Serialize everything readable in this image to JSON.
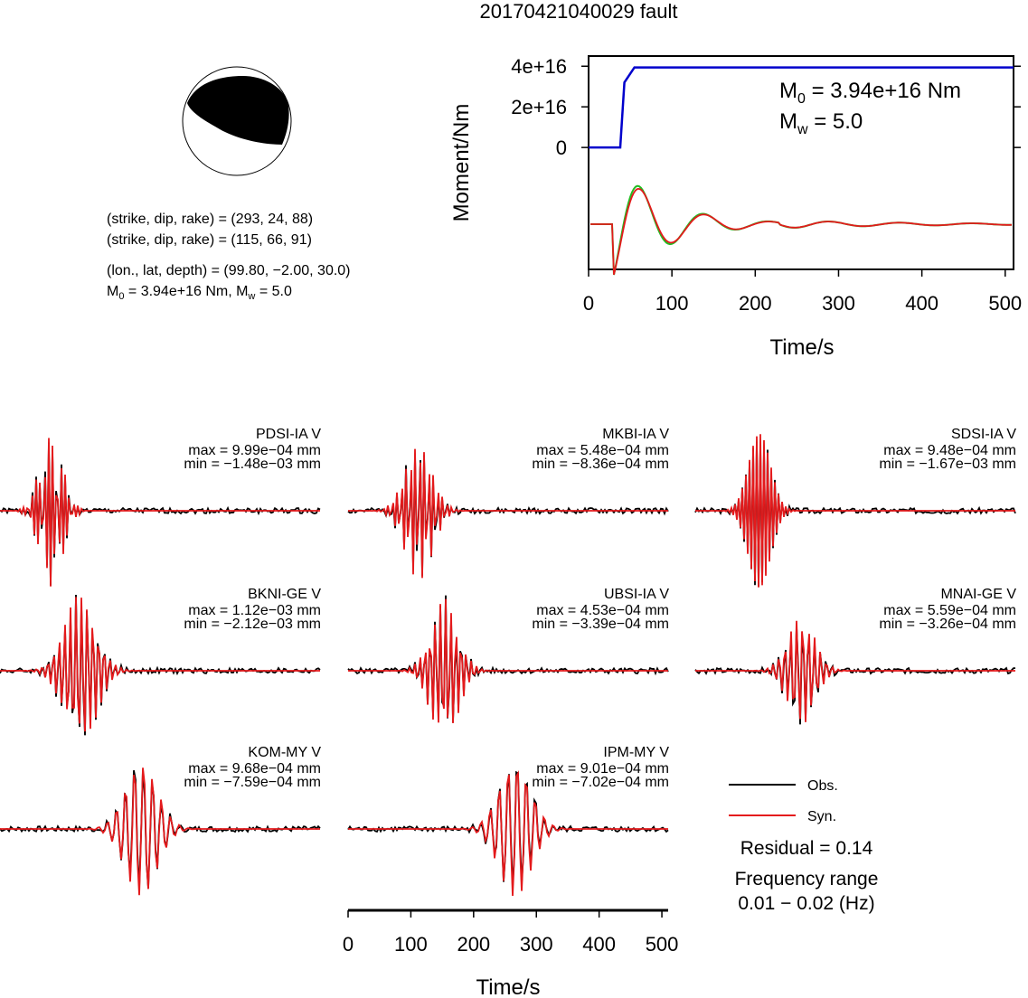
{
  "title": "20170421040029 fault",
  "info": {
    "np1": "(strike, dip, rake) = (293, 24, 88)",
    "np2": "(strike, dip, rake) = (115, 66, 91)",
    "loc": "(lon., lat, depth) = (99.80, −2.00, 30.0)",
    "m0_prefix": "M",
    "m0_sub": "0",
    "m0_rest": " = 3.94e+16 Nm, M",
    "mw_sub": "w",
    "mw_rest": " = 5.0"
  },
  "colors": {
    "obs": "#000000",
    "syn": "#e41a1c",
    "moment": "#0000cc",
    "green": "#22bb22"
  },
  "chart_data": [
    {
      "type": "line",
      "ylabel": "Moment/Nm",
      "xlabel": "Time/s",
      "xlim": [
        0,
        510
      ],
      "ylim": [
        -6e+16,
        4.5e+16
      ],
      "x_ticks": [
        "0",
        "100",
        "200",
        "300",
        "400",
        "500"
      ],
      "y_ticks": [
        "0",
        "2e+16",
        "4e+16"
      ],
      "annotation": {
        "m0_prefix": "M",
        "m0_sub": "0",
        "m0_rest": " = 3.94e+16 Nm",
        "mw_prefix": "M",
        "mw_sub": "w",
        "mw_rest": " = 5.0"
      },
      "series": [
        {
          "name": "",
          "x": [
            0,
            38,
            43,
            55,
            510
          ],
          "values": [
            0,
            0,
            3.2e+16,
            3.94e+16,
            3.94e+16
          ]
        }
      ]
    },
    {
      "type": "line",
      "xlabel": "Time/s",
      "xlim": [
        0,
        510
      ],
      "x_ticks": [
        "0",
        "100",
        "200",
        "300",
        "400",
        "500"
      ],
      "legend": {
        "position": "bottom-right",
        "obs": "Obs.",
        "syn": "Syn."
      },
      "residual": "Residual = 0.14",
      "freq_label": "Frequency range",
      "freq_value": "0.01 − 0.02 (Hz)",
      "stations": [
        {
          "name": "PDSI-IA V",
          "max": "max = 9.99e−04 mm",
          "min": "min = −1.48e−03 mm"
        },
        {
          "name": "MKBI-IA V",
          "max": "max = 5.48e−04 mm",
          "min": "min = −8.36e−04 mm"
        },
        {
          "name": "SDSI-IA V",
          "max": "max = 9.48e−04 mm",
          "min": "min = −1.67e−03 mm"
        },
        {
          "name": "BKNI-GE V",
          "max": "max = 1.12e−03 mm",
          "min": "min = −2.12e−03 mm"
        },
        {
          "name": "UBSI-IA V",
          "max": "max = 4.53e−04 mm",
          "min": "min = −3.39e−04 mm"
        },
        {
          "name": "MNAI-GE V",
          "max": "max = 5.59e−04 mm",
          "min": "min = −3.26e−04 mm"
        },
        {
          "name": "KOM-MY V",
          "max": "max = 9.68e−04 mm",
          "min": "min = −7.59e−04 mm"
        },
        {
          "name": "IPM-MY V",
          "max": "max = 9.01e−04 mm",
          "min": "min = −7.02e−04 mm"
        }
      ]
    }
  ]
}
